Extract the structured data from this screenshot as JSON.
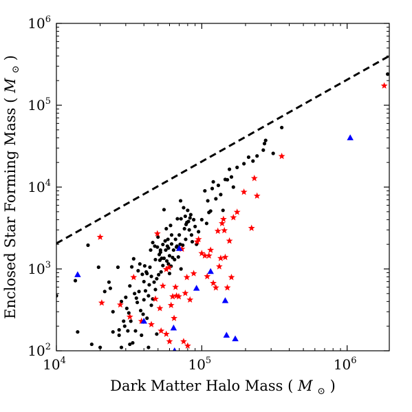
{
  "chart_data": {
    "type": "scatter",
    "title": "",
    "xlabel": "Dark Matter Halo Mass",
    "xlabel_unit": "M",
    "xlabel_sub": "⊙",
    "ylabel": "Enclosed Star Forming Mass",
    "ylabel_unit": "M",
    "ylabel_sub": "⊙",
    "xscale": "log",
    "yscale": "log",
    "xlim": [
      10000,
      1950000
    ],
    "ylim": [
      100,
      1000000
    ],
    "grid": false,
    "x_ticks": [
      {
        "base": "10",
        "exp": "4",
        "value": 10000
      },
      {
        "base": "10",
        "exp": "5",
        "value": 100000
      },
      {
        "base": "10",
        "exp": "6",
        "value": 1000000
      }
    ],
    "y_ticks": [
      {
        "base": "10",
        "exp": "2",
        "value": 100
      },
      {
        "base": "10",
        "exp": "3",
        "value": 1000
      },
      {
        "base": "10",
        "exp": "4",
        "value": 10000
      },
      {
        "base": "10",
        "exp": "5",
        "value": 100000
      },
      {
        "base": "10",
        "exp": "6",
        "value": 1000000
      }
    ],
    "line": {
      "style": "dashed",
      "color": "#000000",
      "points": [
        [
          10000,
          2050
        ],
        [
          1950000,
          400000
        ]
      ]
    },
    "series": [
      {
        "marker": "circle",
        "color": "#000000",
        "points": [
          [
            10000,
            470
          ],
          [
            13500,
            720
          ],
          [
            14000,
            170
          ],
          [
            16500,
            1950
          ],
          [
            17500,
            120
          ],
          [
            19500,
            1050
          ],
          [
            20000,
            110
          ],
          [
            21500,
            530
          ],
          [
            23000,
            690
          ],
          [
            23500,
            580
          ],
          [
            24500,
            170
          ],
          [
            24500,
            300
          ],
          [
            26500,
            1050
          ],
          [
            27000,
            155
          ],
          [
            27000,
            180
          ],
          [
            28000,
            110
          ],
          [
            28000,
            400
          ],
          [
            29000,
            230
          ],
          [
            29500,
            200
          ],
          [
            30000,
            450
          ],
          [
            30500,
            330
          ],
          [
            31000,
            175
          ],
          [
            31500,
            290
          ],
          [
            32000,
            120
          ],
          [
            32000,
            620
          ],
          [
            32500,
            230
          ],
          [
            33000,
            1060
          ],
          [
            33500,
            125
          ],
          [
            34000,
            1330
          ],
          [
            34500,
            500
          ],
          [
            35000,
            175
          ],
          [
            35500,
            440
          ],
          [
            36000,
            390
          ],
          [
            36500,
            950
          ],
          [
            37000,
            530
          ],
          [
            37500,
            1150
          ],
          [
            38000,
            310
          ],
          [
            38500,
            155
          ],
          [
            39000,
            860
          ],
          [
            39500,
            280
          ],
          [
            40000,
            700
          ],
          [
            40000,
            420
          ],
          [
            40500,
            1090
          ],
          [
            41000,
            540
          ],
          [
            41500,
            920
          ],
          [
            42000,
            880
          ],
          [
            42000,
            250
          ],
          [
            43000,
            110
          ],
          [
            43000,
            470
          ],
          [
            43500,
            640
          ],
          [
            44000,
            1050
          ],
          [
            44500,
            1700
          ],
          [
            45000,
            810
          ],
          [
            45000,
            360
          ],
          [
            46000,
            430
          ],
          [
            46000,
            2100
          ],
          [
            47000,
            690
          ],
          [
            47500,
            1900
          ],
          [
            48000,
            1300
          ],
          [
            48000,
            560
          ],
          [
            49000,
            160
          ],
          [
            49000,
            760
          ],
          [
            49500,
            1850
          ],
          [
            50000,
            2450
          ],
          [
            50500,
            850
          ],
          [
            51000,
            1500
          ],
          [
            51500,
            1280
          ],
          [
            52000,
            1700
          ],
          [
            52000,
            1600
          ],
          [
            52500,
            920
          ],
          [
            53000,
            1350
          ],
          [
            54000,
            1100
          ],
          [
            54000,
            1990
          ],
          [
            55000,
            5300
          ],
          [
            55000,
            1350
          ],
          [
            56000,
            2200
          ],
          [
            56500,
            1700
          ],
          [
            57000,
            3100
          ],
          [
            57500,
            1250
          ],
          [
            58000,
            1900
          ],
          [
            58500,
            2300
          ],
          [
            59000,
            1800
          ],
          [
            59000,
            1150
          ],
          [
            60000,
            1450
          ],
          [
            60000,
            880
          ],
          [
            61000,
            3400
          ],
          [
            61500,
            1080
          ],
          [
            62000,
            2020
          ],
          [
            62000,
            2600
          ],
          [
            63000,
            1380
          ],
          [
            64000,
            1700
          ],
          [
            65000,
            1300
          ],
          [
            66000,
            2300
          ],
          [
            67000,
            1850
          ],
          [
            67500,
            1900
          ],
          [
            68000,
            4100
          ],
          [
            69000,
            1400
          ],
          [
            70000,
            2600
          ],
          [
            71000,
            2000
          ],
          [
            71500,
            6800
          ],
          [
            72000,
            1000
          ],
          [
            72000,
            4100
          ],
          [
            74000,
            1950
          ],
          [
            75000,
            5600
          ],
          [
            76000,
            3100
          ],
          [
            77000,
            4400
          ],
          [
            77500,
            2300
          ],
          [
            78000,
            3500
          ],
          [
            79000,
            3700
          ],
          [
            80000,
            5200
          ],
          [
            81000,
            3800
          ],
          [
            82000,
            3000
          ],
          [
            83000,
            4200
          ],
          [
            84000,
            4600
          ],
          [
            85000,
            2600
          ],
          [
            86000,
            2150
          ],
          [
            88000,
            4000
          ],
          [
            90000,
            3300
          ],
          [
            92000,
            2000
          ],
          [
            95000,
            2850
          ],
          [
            100000,
            4000
          ],
          [
            105000,
            9000
          ],
          [
            108000,
            3600
          ],
          [
            110000,
            6800
          ],
          [
            112000,
            4900
          ],
          [
            115000,
            5100
          ],
          [
            118000,
            9600
          ],
          [
            120000,
            11600
          ],
          [
            125000,
            7200
          ],
          [
            130000,
            10500
          ],
          [
            135000,
            8100
          ],
          [
            140000,
            5200
          ],
          [
            145000,
            12400
          ],
          [
            150000,
            12300
          ],
          [
            155000,
            16500
          ],
          [
            160000,
            13300
          ],
          [
            165000,
            10000
          ],
          [
            175000,
            17400
          ],
          [
            195000,
            19300
          ],
          [
            210000,
            23200
          ],
          [
            225000,
            20800
          ],
          [
            240000,
            24000
          ],
          [
            265000,
            28300
          ],
          [
            270000,
            34000
          ],
          [
            275000,
            37200
          ],
          [
            310000,
            25800
          ],
          [
            355000,
            53400
          ],
          [
            1900000,
            240000
          ]
        ]
      },
      {
        "marker": "star",
        "color": "#ff0000",
        "points": [
          [
            20000,
            2450
          ],
          [
            20500,
            385
          ],
          [
            27500,
            365
          ],
          [
            32000,
            260
          ],
          [
            34000,
            790
          ],
          [
            38500,
            230
          ],
          [
            45000,
            210
          ],
          [
            48000,
            430
          ],
          [
            49500,
            2700
          ],
          [
            51500,
            330
          ],
          [
            52500,
            175
          ],
          [
            54000,
            620
          ],
          [
            57000,
            990
          ],
          [
            57000,
            160
          ],
          [
            59500,
            1040
          ],
          [
            60000,
            130
          ],
          [
            61500,
            360
          ],
          [
            63000,
            460
          ],
          [
            64500,
            250
          ],
          [
            66000,
            600
          ],
          [
            67000,
            470
          ],
          [
            69500,
            460
          ],
          [
            73000,
            1750
          ],
          [
            75000,
            130
          ],
          [
            77000,
            505
          ],
          [
            79000,
            790
          ],
          [
            80000,
            115
          ],
          [
            83000,
            420
          ],
          [
            88000,
            880
          ],
          [
            93000,
            2150
          ],
          [
            95000,
            2300
          ],
          [
            100000,
            1550
          ],
          [
            105000,
            1450
          ],
          [
            109000,
            810
          ],
          [
            112000,
            1450
          ],
          [
            115000,
            1700
          ],
          [
            120000,
            670
          ],
          [
            125000,
            590
          ],
          [
            129000,
            2900
          ],
          [
            132000,
            1070
          ],
          [
            135000,
            1350
          ],
          [
            138000,
            3600
          ],
          [
            141000,
            4050
          ],
          [
            143000,
            2950
          ],
          [
            145000,
            1390
          ],
          [
            150000,
            590
          ],
          [
            155000,
            2200
          ],
          [
            160000,
            790
          ],
          [
            165000,
            4250
          ],
          [
            175000,
            4950
          ],
          [
            195000,
            8700
          ],
          [
            220000,
            3150
          ],
          [
            230000,
            12800
          ],
          [
            240000,
            7800
          ],
          [
            355000,
            23800
          ],
          [
            1800000,
            173000
          ]
        ]
      },
      {
        "marker": "triangle",
        "color": "#0000ff",
        "points": [
          [
            14000,
            850
          ],
          [
            40000,
            230
          ],
          [
            64000,
            190
          ],
          [
            65000,
            100
          ],
          [
            70000,
            1780
          ],
          [
            92000,
            580
          ],
          [
            115000,
            930
          ],
          [
            145000,
            410
          ],
          [
            148000,
            155
          ],
          [
            170000,
            140
          ],
          [
            1050000,
            40000
          ]
        ]
      }
    ]
  }
}
